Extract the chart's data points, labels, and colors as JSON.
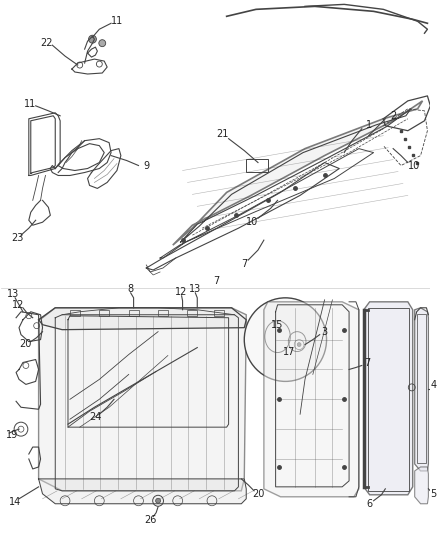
{
  "bg_color": "#ffffff",
  "fig_width": 4.38,
  "fig_height": 5.33,
  "dpi": 100,
  "line_color": "#444444",
  "line_width": 0.8,
  "label_fontsize": 7.0,
  "label_color": "#222222"
}
